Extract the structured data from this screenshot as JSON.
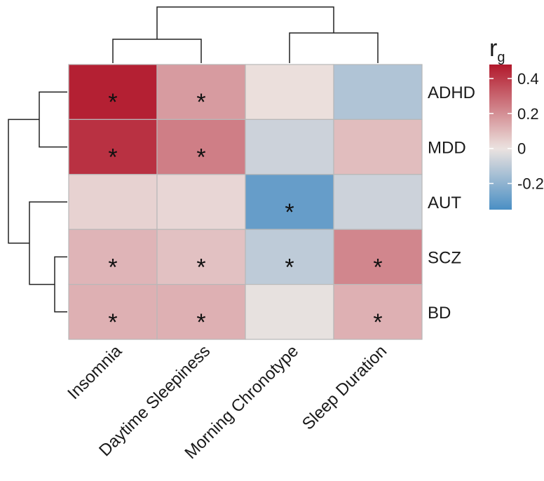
{
  "chart_data": {
    "type": "heatmap",
    "title": "",
    "xlabel": "",
    "ylabel": "",
    "columns": [
      "Insomnia",
      "Daytime Sleepiness",
      "Morning Chronotype",
      "Sleep Duration"
    ],
    "rows": [
      "ADHD",
      "MDD",
      "AUT",
      "SCZ",
      "BD"
    ],
    "values": [
      [
        0.46,
        0.17,
        0.01,
        -0.13
      ],
      [
        0.42,
        0.24,
        -0.07,
        0.09
      ],
      [
        0.04,
        0.03,
        -0.29,
        -0.07
      ],
      [
        0.11,
        0.08,
        -0.1,
        0.22
      ],
      [
        0.12,
        0.12,
        -0.01,
        0.12
      ]
    ],
    "significant": [
      [
        true,
        true,
        false,
        false
      ],
      [
        true,
        true,
        false,
        false
      ],
      [
        false,
        false,
        true,
        false
      ],
      [
        true,
        true,
        true,
        true
      ],
      [
        true,
        true,
        false,
        true
      ]
    ],
    "significance_marker": "*",
    "color_scale": {
      "min": -0.35,
      "max": 0.48,
      "low_color": "#4A8FC4",
      "mid_color": "#ECE3E0",
      "high_color": "#B2182B"
    },
    "legend": {
      "title_main": "r",
      "title_sub": "g",
      "ticks": [
        0.4,
        0.2,
        0,
        -0.2
      ],
      "tick_labels": [
        "0.4",
        "0.2",
        "0",
        "-0.2"
      ],
      "placement": "right"
    },
    "row_dendrogram": true,
    "column_dendrogram": true
  }
}
